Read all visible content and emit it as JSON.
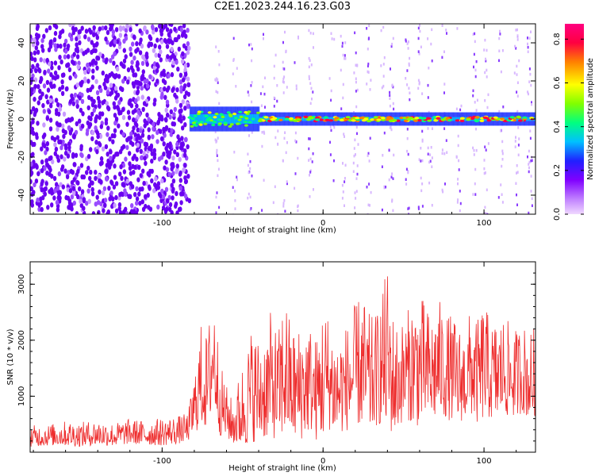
{
  "title": "C2E1.2023.244.16.23.G03",
  "colors": {
    "snr_line": "#ee2e2e",
    "signal_core": "#e31b3b",
    "noise_violet": "#6a00f0",
    "background": "#ffffff"
  },
  "chart_data": [
    {
      "type": "heatmap",
      "panel": "spectrogram",
      "xlabel": "Height of straight line (km)",
      "ylabel": "Frequency (Hz)",
      "xlim": [
        -182,
        132
      ],
      "ylim": [
        -50,
        50
      ],
      "xticks": [
        -100,
        0,
        100
      ],
      "yticks": [
        -40,
        -20,
        0,
        20,
        40
      ],
      "colorbar": {
        "label": "Normalized spectral amplitude",
        "range": [
          0,
          0.87
        ],
        "ticks": [
          0.0,
          0.2,
          0.4,
          0.6,
          0.8
        ],
        "colormap": [
          "#f0d8ff",
          "#c080ff",
          "#8000ff",
          "#2020ff",
          "#00c0ff",
          "#00ff80",
          "#80ff00",
          "#ffff00",
          "#ff8000",
          "#ff0040",
          "#ff0080"
        ]
      },
      "regions": [
        {
          "x_range": [
            -182,
            -83
          ],
          "description_level": 0.08,
          "note": "dense broadband noise"
        },
        {
          "x_range": [
            -83,
            -40
          ],
          "center_freq": 0,
          "band_halfwidth": 5
        },
        {
          "x_range": [
            -40,
            132
          ],
          "center_freq": 0,
          "band_halfwidth": 2
        }
      ],
      "grid": false
    },
    {
      "type": "line",
      "panel": "snr",
      "xlabel": "Height of straight line (km)",
      "ylabel": "SNR (10 * v/v)",
      "xlim": [
        -182,
        132
      ],
      "ylim": [
        0,
        3400
      ],
      "xticks": [
        -100,
        0,
        100
      ],
      "yticks": [
        1000,
        2000,
        3000
      ],
      "grid": false,
      "x": [
        -182,
        -170,
        -160,
        -150,
        -140,
        -130,
        -120,
        -110,
        -100,
        -90,
        -84,
        -80,
        -76,
        -72,
        -68,
        -64,
        -60,
        -56,
        -52,
        -48,
        -44,
        -40,
        -36,
        -32,
        -28,
        -24,
        -20,
        -16,
        -12,
        -8,
        -4,
        0,
        4,
        8,
        12,
        16,
        20,
        24,
        28,
        32,
        36,
        40,
        44,
        48,
        52,
        56,
        60,
        64,
        68,
        72,
        76,
        80,
        84,
        88,
        92,
        96,
        100,
        104,
        108,
        112,
        116,
        120,
        124,
        128,
        132
      ],
      "y_upper": [
        480,
        500,
        560,
        540,
        580,
        520,
        600,
        560,
        620,
        650,
        700,
        1400,
        2300,
        2100,
        3050,
        1600,
        1200,
        900,
        1400,
        1800,
        2300,
        2050,
        2200,
        2550,
        2100,
        2950,
        2300,
        2200,
        2450,
        2300,
        2050,
        2700,
        2450,
        2100,
        2200,
        2350,
        2650,
        2900,
        2500,
        2400,
        2800,
        3350,
        2400,
        2300,
        2500,
        2800,
        2900,
        2600,
        2500,
        2750,
        2500,
        2450,
        2300,
        2150,
        2600,
        2350,
        2750,
        2300,
        2400,
        2450,
        2300,
        2200,
        2350,
        2100,
        2300
      ],
      "y_lower": [
        100,
        120,
        120,
        100,
        130,
        110,
        150,
        130,
        120,
        150,
        200,
        300,
        500,
        400,
        800,
        300,
        250,
        150,
        100,
        120,
        180,
        200,
        250,
        260,
        220,
        300,
        280,
        200,
        250,
        400,
        200,
        250,
        400,
        300,
        350,
        400,
        500,
        450,
        300,
        450,
        500,
        400,
        300,
        500,
        600,
        500,
        450,
        600,
        500,
        700,
        600,
        550,
        500,
        600,
        650,
        500,
        600,
        600,
        550,
        700,
        600,
        650,
        700,
        600,
        650
      ]
    }
  ]
}
